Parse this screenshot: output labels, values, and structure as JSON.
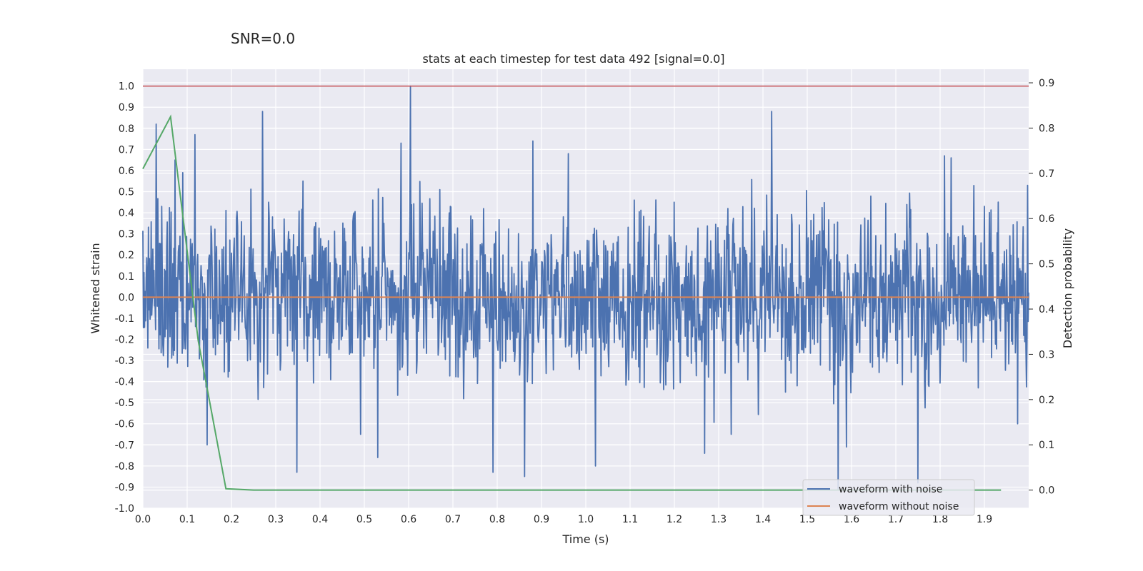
{
  "chart_data": {
    "type": "line",
    "suptitle": "SNR=0.0",
    "title": "stats at each timestep for test data 492 [signal=0.0]",
    "xlabel": "Time (s)",
    "ylabel": "Whitened strain",
    "y2label": "Detection probability",
    "xlim": [
      0.0,
      2.0
    ],
    "ylim": [
      -1.0,
      1.08
    ],
    "y2lim": [
      -0.04,
      0.93
    ],
    "xticks": [
      "0.0",
      "0.1",
      "0.2",
      "0.3",
      "0.4",
      "0.5",
      "0.6",
      "0.7",
      "0.8",
      "0.9",
      "1.0",
      "1.1",
      "1.2",
      "1.3",
      "1.4",
      "1.5",
      "1.6",
      "1.7",
      "1.8",
      "1.9"
    ],
    "yticks": [
      "-1.0",
      "-0.9",
      "-0.8",
      "-0.7",
      "-0.6",
      "-0.5",
      "-0.4",
      "-0.3",
      "-0.2",
      "-0.1",
      "0.0",
      "0.1",
      "0.2",
      "0.3",
      "0.4",
      "0.5",
      "0.6",
      "0.7",
      "0.8",
      "0.9",
      "1.0"
    ],
    "y2ticks": [
      "0.0",
      "0.1",
      "0.2",
      "0.3",
      "0.4",
      "0.5",
      "0.6",
      "0.7",
      "0.8",
      "0.9"
    ],
    "noise_series": {
      "name": "waveform with noise",
      "color": "#4c72b0",
      "n_points": 1600,
      "seed": 492,
      "peaks": [
        {
          "t": 0.03,
          "v": 0.82
        },
        {
          "t": 0.072,
          "v": 0.65
        },
        {
          "t": 0.09,
          "v": 0.59
        },
        {
          "t": 0.118,
          "v": 0.77
        },
        {
          "t": 0.145,
          "v": -0.7
        },
        {
          "t": 0.27,
          "v": 0.88
        },
        {
          "t": 0.348,
          "v": -0.83
        },
        {
          "t": 0.362,
          "v": 0.55
        },
        {
          "t": 0.492,
          "v": -0.65
        },
        {
          "t": 0.53,
          "v": -0.76
        },
        {
          "t": 0.583,
          "v": 0.73
        },
        {
          "t": 0.604,
          "v": 1.0
        },
        {
          "t": 0.79,
          "v": -0.83
        },
        {
          "t": 0.862,
          "v": -0.85
        },
        {
          "t": 0.88,
          "v": 0.74
        },
        {
          "t": 0.96,
          "v": 0.68
        },
        {
          "t": 1.022,
          "v": -0.8
        },
        {
          "t": 1.268,
          "v": -0.74
        },
        {
          "t": 1.328,
          "v": -0.65
        },
        {
          "t": 1.42,
          "v": 0.88
        },
        {
          "t": 1.57,
          "v": -0.91
        },
        {
          "t": 1.588,
          "v": -0.71
        },
        {
          "t": 1.75,
          "v": -0.88
        },
        {
          "t": 1.81,
          "v": 0.67
        },
        {
          "t": 1.825,
          "v": 0.66
        },
        {
          "t": 1.975,
          "v": -0.6
        },
        {
          "t": 1.998,
          "v": 0.53
        }
      ]
    },
    "clean_series": {
      "name": "waveform without noise",
      "color": "#dd8452",
      "x": [
        0.0,
        2.0
      ],
      "y": [
        0.0,
        0.0
      ]
    },
    "probability_series": {
      "name": "detection probability",
      "color": "#55a868",
      "axis": "right",
      "x": [
        0.0,
        0.0625,
        0.125,
        0.1875,
        0.25,
        0.3125,
        0.5,
        1.0,
        1.5,
        1.9375
      ],
      "y": [
        0.71,
        0.825,
        0.33,
        0.003,
        0.0,
        0.0,
        0.0,
        0.0,
        0.0,
        0.0
      ]
    },
    "threshold_line": {
      "color": "#c44e52",
      "y": 1.0
    },
    "legend": {
      "location": "lower right",
      "entries": [
        "waveform with noise",
        "waveform without noise"
      ]
    },
    "grid": true
  }
}
